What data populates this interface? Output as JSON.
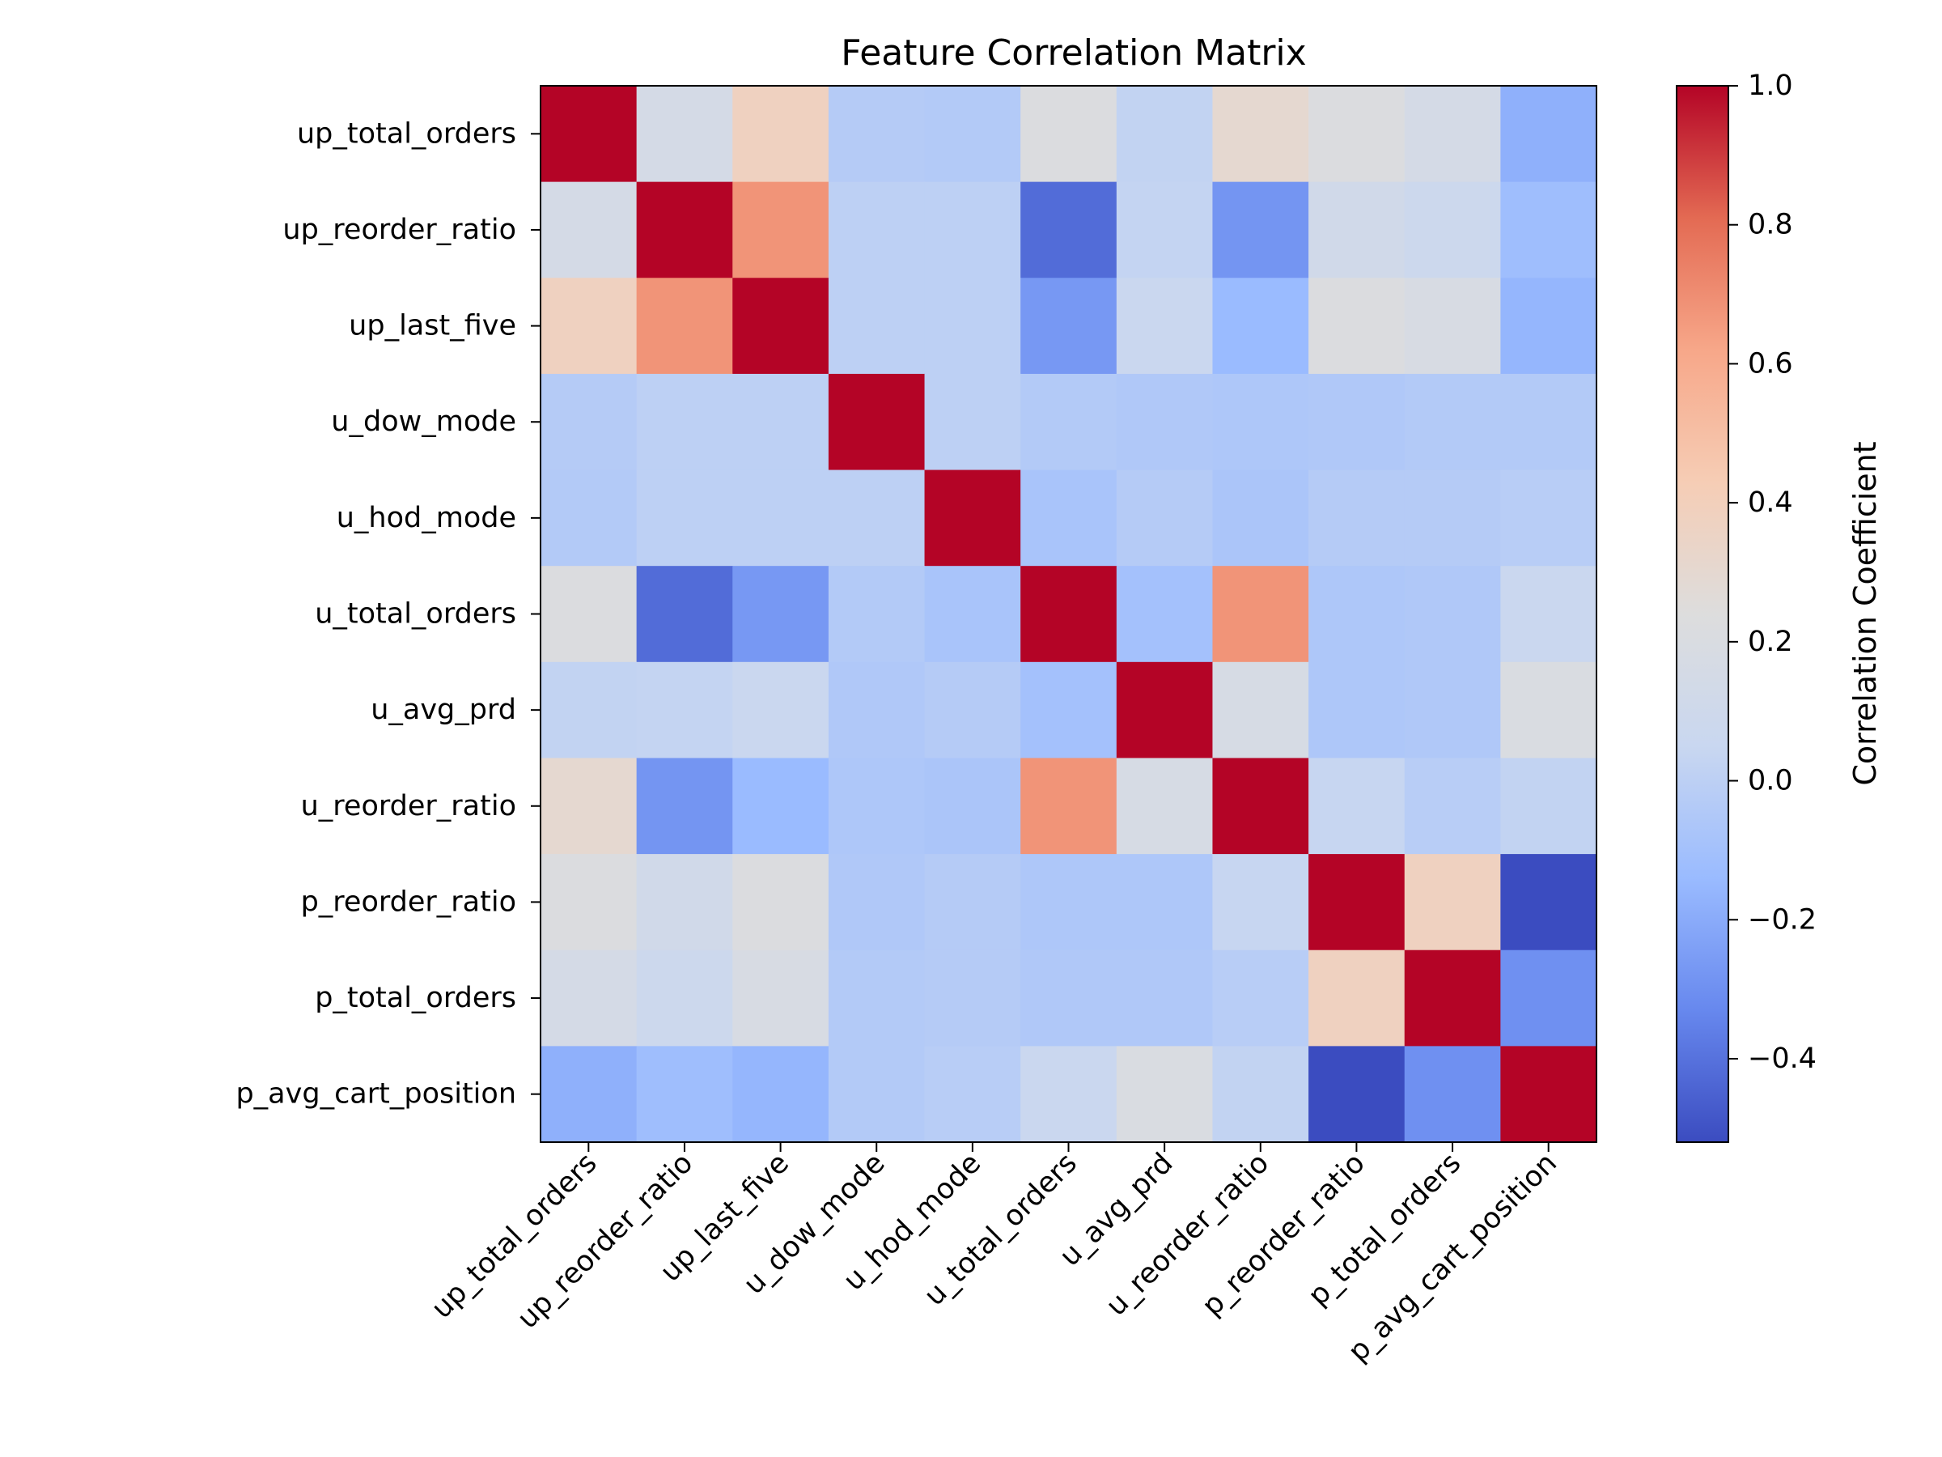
{
  "chart_data": {
    "type": "heatmap",
    "title": "Feature Correlation Matrix",
    "labels": [
      "up_total_orders",
      "up_reorder_ratio",
      "up_last_five",
      "u_dow_mode",
      "u_hod_mode",
      "u_total_orders",
      "u_avg_prd",
      "u_reorder_ratio",
      "p_reorder_ratio",
      "p_total_orders",
      "p_avg_cart_position"
    ],
    "matrix": [
      [
        1.0,
        0.15,
        0.38,
        -0.03,
        -0.04,
        0.22,
        0.02,
        0.3,
        0.22,
        0.15,
        -0.18
      ],
      [
        0.15,
        1.0,
        0.68,
        0.0,
        0.0,
        -0.42,
        0.03,
        -0.28,
        0.12,
        0.08,
        -0.12
      ],
      [
        0.38,
        0.68,
        1.0,
        0.0,
        0.0,
        -0.27,
        0.06,
        -0.14,
        0.22,
        0.18,
        -0.16
      ],
      [
        -0.03,
        0.0,
        0.0,
        1.0,
        0.0,
        -0.04,
        -0.05,
        -0.06,
        -0.05,
        -0.04,
        -0.04
      ],
      [
        -0.04,
        0.0,
        0.0,
        0.0,
        1.0,
        -0.08,
        -0.03,
        -0.07,
        -0.03,
        -0.03,
        -0.02
      ],
      [
        0.22,
        -0.42,
        -0.27,
        -0.04,
        -0.08,
        1.0,
        -0.1,
        0.68,
        -0.06,
        -0.05,
        0.06
      ],
      [
        0.02,
        0.03,
        0.06,
        -0.05,
        -0.03,
        -0.1,
        1.0,
        0.17,
        -0.06,
        -0.05,
        0.2
      ],
      [
        0.3,
        -0.28,
        -0.14,
        -0.06,
        -0.07,
        0.68,
        0.17,
        1.0,
        0.04,
        -0.02,
        0.02
      ],
      [
        0.22,
        0.12,
        0.22,
        -0.05,
        -0.03,
        -0.06,
        -0.06,
        0.04,
        1.0,
        0.38,
        -0.52
      ],
      [
        0.15,
        0.08,
        0.18,
        -0.04,
        -0.03,
        -0.05,
        -0.05,
        -0.02,
        0.38,
        1.0,
        -0.3
      ],
      [
        -0.18,
        -0.12,
        -0.16,
        -0.04,
        -0.02,
        0.06,
        0.2,
        0.02,
        -0.52,
        -0.3,
        1.0
      ]
    ],
    "colormap": "coolwarm",
    "colormap_stops": [
      "#3b4cc0",
      "#6788ee",
      "#9abbff",
      "#c9d7f0",
      "#dddddd",
      "#f6cdb5",
      "#f7a789",
      "#e36a53",
      "#b40426"
    ],
    "vmin": -0.52,
    "vmax": 1.0,
    "colorbar": {
      "label": "Correlation Coefficient",
      "ticks": [
        1.0,
        0.8,
        0.6,
        0.4,
        0.2,
        0.0,
        -0.2,
        -0.4
      ],
      "tick_labels": [
        "1.0",
        "0.8",
        "0.6",
        "0.4",
        "0.2",
        "0.0",
        "−0.2",
        "−0.4"
      ]
    },
    "grid": false
  }
}
